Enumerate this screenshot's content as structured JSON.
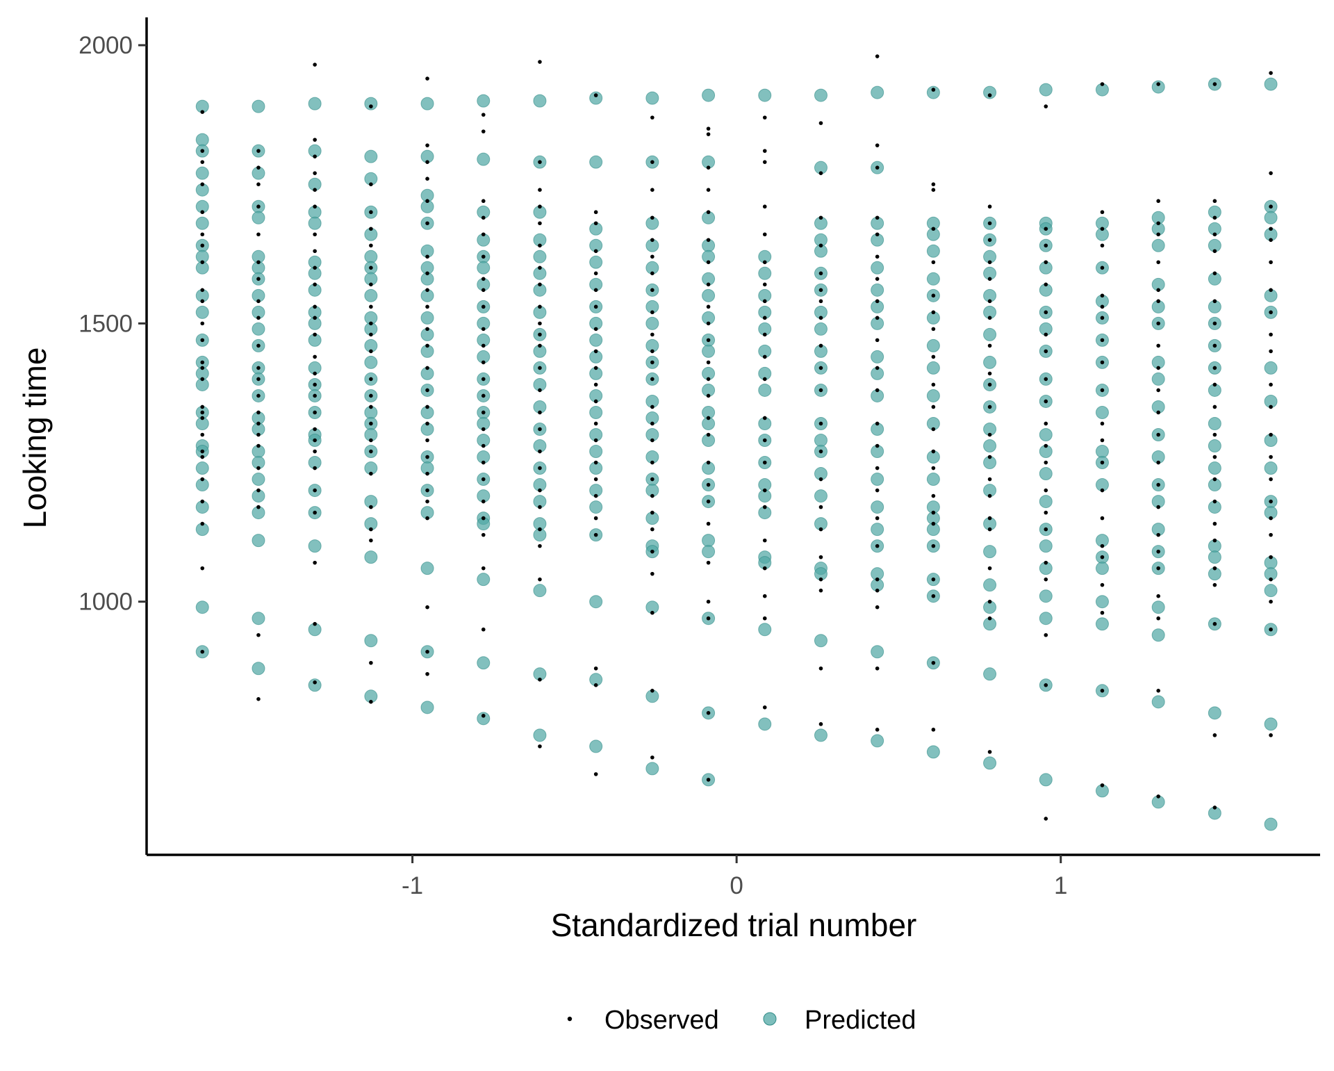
{
  "chart_data": {
    "type": "scatter",
    "title": "",
    "xlabel": "Standardized trial number",
    "ylabel": "Looking time",
    "xlim": [
      -1.82,
      1.8
    ],
    "ylim": [
      545,
      2050
    ],
    "x_ticks": [
      -1,
      0,
      1
    ],
    "x_tick_labels": [
      "-1",
      "0",
      "1"
    ],
    "y_ticks": [
      1000,
      1500,
      2000
    ],
    "y_tick_labels": [
      "1000",
      "1500",
      "2000"
    ],
    "grid": false,
    "legend": {
      "position": "bottom",
      "entries": [
        "Observed",
        "Predicted"
      ]
    },
    "colors": {
      "observed": "#000000",
      "predicted": "#52a8a5",
      "predicted_stroke": "#2f8a86"
    },
    "x_positions": [
      -1.648,
      -1.475,
      -1.301,
      -1.128,
      -0.954,
      -0.781,
      -0.607,
      -0.434,
      -0.26,
      -0.087,
      0.087,
      0.26,
      0.434,
      0.607,
      0.781,
      0.954,
      1.128,
      1.301,
      1.475,
      1.648
    ],
    "series": [
      {
        "name": "Observed",
        "groups": [
          [
            1880,
            1810,
            1790,
            1750,
            1700,
            1660,
            1640,
            1610,
            1560,
            1540,
            1500,
            1470,
            1430,
            1420,
            1400,
            1350,
            1340,
            1330,
            1300,
            1270,
            1260,
            1220,
            1180,
            1140,
            1060,
            910
          ],
          [
            1810,
            1780,
            1750,
            1710,
            1660,
            1610,
            1580,
            1540,
            1510,
            1460,
            1420,
            1400,
            1370,
            1340,
            1320,
            1300,
            1280,
            1240,
            1200,
            1170,
            940,
            825
          ],
          [
            1965,
            1830,
            1800,
            1770,
            1740,
            1710,
            1660,
            1630,
            1600,
            1570,
            1530,
            1510,
            1480,
            1440,
            1410,
            1390,
            1370,
            1340,
            1310,
            1290,
            1270,
            1240,
            1200,
            1160,
            1070,
            960,
            855
          ],
          [
            1890,
            1750,
            1700,
            1670,
            1640,
            1600,
            1570,
            1530,
            1500,
            1480,
            1450,
            1400,
            1370,
            1350,
            1320,
            1290,
            1270,
            1230,
            1170,
            1130,
            1110,
            890,
            820
          ],
          [
            1940,
            1820,
            1790,
            1760,
            1720,
            1680,
            1620,
            1590,
            1560,
            1530,
            1490,
            1460,
            1420,
            1380,
            1350,
            1320,
            1290,
            1260,
            1230,
            1200,
            1180,
            1150,
            990,
            910,
            870
          ],
          [
            1875,
            1845,
            1720,
            1690,
            1660,
            1620,
            1580,
            1560,
            1530,
            1490,
            1460,
            1430,
            1400,
            1370,
            1340,
            1310,
            1280,
            1250,
            1220,
            1180,
            1150,
            1120,
            1060,
            950,
            795
          ],
          [
            1970,
            1790,
            1740,
            1710,
            1680,
            1640,
            1600,
            1570,
            1530,
            1500,
            1480,
            1460,
            1420,
            1380,
            1340,
            1310,
            1270,
            1240,
            1200,
            1170,
            1130,
            1100,
            1040,
            860,
            740
          ],
          [
            1910,
            1700,
            1680,
            1630,
            1590,
            1560,
            1530,
            1490,
            1450,
            1420,
            1390,
            1360,
            1320,
            1290,
            1250,
            1220,
            1190,
            1150,
            1120,
            880,
            850,
            690
          ],
          [
            1870,
            1790,
            1740,
            1690,
            1650,
            1620,
            1590,
            1560,
            1520,
            1480,
            1450,
            1430,
            1400,
            1350,
            1320,
            1290,
            1250,
            1220,
            1190,
            1160,
            1130,
            1090,
            1050,
            980,
            840,
            720
          ],
          [
            1850,
            1840,
            1780,
            1740,
            1700,
            1650,
            1610,
            1570,
            1530,
            1500,
            1470,
            1430,
            1400,
            1370,
            1330,
            1300,
            1250,
            1210,
            1180,
            1140,
            1070,
            1000,
            970,
            800,
            680
          ],
          [
            1870,
            1810,
            1790,
            1710,
            1660,
            1610,
            1570,
            1540,
            1510,
            1480,
            1440,
            1400,
            1330,
            1290,
            1250,
            1200,
            1170,
            1110,
            1060,
            1010,
            970,
            810
          ],
          [
            1860,
            1770,
            1690,
            1640,
            1590,
            1560,
            1540,
            1510,
            1460,
            1420,
            1380,
            1320,
            1270,
            1220,
            1170,
            1130,
            1080,
            1040,
            1020,
            880,
            780
          ],
          [
            1980,
            1820,
            1780,
            1690,
            1660,
            1620,
            1580,
            1540,
            1510,
            1470,
            1420,
            1380,
            1320,
            1280,
            1240,
            1200,
            1150,
            1100,
            1040,
            1020,
            990,
            880,
            770
          ],
          [
            1920,
            1750,
            1740,
            1670,
            1610,
            1550,
            1520,
            1490,
            1440,
            1390,
            1350,
            1310,
            1270,
            1240,
            1190,
            1160,
            1140,
            1100,
            1040,
            1010,
            890,
            770
          ],
          [
            1910,
            1710,
            1680,
            1650,
            1610,
            1580,
            1540,
            1510,
            1460,
            1410,
            1390,
            1350,
            1300,
            1260,
            1220,
            1190,
            1150,
            1130,
            1060,
            1000,
            970,
            730
          ],
          [
            1890,
            1670,
            1640,
            1610,
            1570,
            1520,
            1480,
            1450,
            1400,
            1360,
            1320,
            1280,
            1250,
            1200,
            1160,
            1130,
            1070,
            1040,
            940,
            850,
            610
          ],
          [
            1930,
            1700,
            1670,
            1640,
            1600,
            1550,
            1530,
            1510,
            1470,
            1430,
            1380,
            1320,
            1290,
            1250,
            1200,
            1150,
            1100,
            1080,
            1030,
            980,
            840,
            670
          ],
          [
            1930,
            1720,
            1680,
            1660,
            1610,
            1560,
            1540,
            1500,
            1460,
            1420,
            1380,
            1340,
            1300,
            1250,
            1210,
            1170,
            1120,
            1090,
            1060,
            1010,
            970,
            840,
            650
          ],
          [
            1930,
            1720,
            1690,
            1660,
            1630,
            1590,
            1540,
            1500,
            1460,
            1420,
            1390,
            1350,
            1300,
            1260,
            1220,
            1180,
            1140,
            1110,
            1060,
            1030,
            960,
            760,
            630
          ],
          [
            1950,
            1770,
            1710,
            1670,
            1650,
            1610,
            1560,
            1520,
            1480,
            1450,
            1390,
            1350,
            1300,
            1260,
            1220,
            1180,
            1150,
            1120,
            1080,
            1040,
            1000,
            950,
            760
          ]
        ]
      },
      {
        "name": "Predicted",
        "groups": [
          [
            1890,
            1830,
            1810,
            1770,
            1740,
            1710,
            1680,
            1640,
            1620,
            1600,
            1550,
            1520,
            1470,
            1430,
            1410,
            1390,
            1340,
            1320,
            1280,
            1270,
            1240,
            1210,
            1170,
            1130,
            990,
            910
          ],
          [
            1890,
            1810,
            1770,
            1710,
            1690,
            1620,
            1600,
            1580,
            1550,
            1520,
            1490,
            1460,
            1420,
            1400,
            1370,
            1330,
            1310,
            1270,
            1250,
            1220,
            1190,
            1160,
            1110,
            970,
            880
          ],
          [
            1895,
            1810,
            1750,
            1700,
            1680,
            1610,
            1590,
            1560,
            1520,
            1500,
            1470,
            1420,
            1390,
            1370,
            1340,
            1300,
            1290,
            1250,
            1200,
            1160,
            1100,
            950,
            850
          ],
          [
            1895,
            1800,
            1760,
            1700,
            1660,
            1620,
            1600,
            1580,
            1550,
            1510,
            1490,
            1460,
            1430,
            1400,
            1370,
            1340,
            1320,
            1300,
            1270,
            1240,
            1180,
            1140,
            1080,
            930,
            830
          ],
          [
            1895,
            1800,
            1730,
            1710,
            1680,
            1630,
            1600,
            1580,
            1550,
            1510,
            1480,
            1450,
            1410,
            1380,
            1340,
            1310,
            1260,
            1240,
            1200,
            1160,
            1060,
            910,
            810
          ],
          [
            1900,
            1795,
            1700,
            1650,
            1620,
            1600,
            1570,
            1530,
            1500,
            1470,
            1440,
            1400,
            1370,
            1340,
            1320,
            1290,
            1260,
            1220,
            1190,
            1150,
            1140,
            1040,
            890,
            790
          ],
          [
            1900,
            1790,
            1700,
            1650,
            1620,
            1590,
            1560,
            1520,
            1480,
            1450,
            1420,
            1390,
            1350,
            1310,
            1280,
            1240,
            1210,
            1180,
            1140,
            1120,
            1020,
            870,
            760
          ],
          [
            1905,
            1790,
            1670,
            1640,
            1610,
            1570,
            1530,
            1500,
            1470,
            1440,
            1410,
            1370,
            1340,
            1300,
            1270,
            1240,
            1200,
            1170,
            1120,
            1000,
            860,
            740
          ],
          [
            1905,
            1790,
            1680,
            1640,
            1600,
            1560,
            1530,
            1500,
            1460,
            1430,
            1400,
            1360,
            1330,
            1300,
            1260,
            1220,
            1200,
            1150,
            1100,
            1090,
            990,
            830,
            700
          ],
          [
            1910,
            1790,
            1690,
            1640,
            1620,
            1580,
            1550,
            1510,
            1470,
            1450,
            1410,
            1380,
            1340,
            1320,
            1290,
            1240,
            1210,
            1180,
            1110,
            1090,
            970,
            800,
            680
          ],
          [
            1910,
            1620,
            1590,
            1550,
            1520,
            1490,
            1450,
            1410,
            1380,
            1320,
            1290,
            1250,
            1210,
            1190,
            1160,
            1080,
            1070,
            950,
            780
          ],
          [
            1910,
            1780,
            1680,
            1650,
            1630,
            1590,
            1560,
            1520,
            1490,
            1450,
            1420,
            1380,
            1320,
            1290,
            1270,
            1230,
            1190,
            1140,
            1060,
            1050,
            930,
            760
          ],
          [
            1915,
            1780,
            1680,
            1650,
            1600,
            1560,
            1530,
            1500,
            1440,
            1410,
            1370,
            1310,
            1270,
            1220,
            1170,
            1130,
            1100,
            1050,
            1030,
            910,
            750
          ],
          [
            1915,
            1680,
            1660,
            1630,
            1580,
            1550,
            1510,
            1460,
            1420,
            1370,
            1320,
            1260,
            1220,
            1170,
            1150,
            1130,
            1100,
            1040,
            1010,
            890,
            730
          ],
          [
            1915,
            1680,
            1650,
            1620,
            1590,
            1550,
            1520,
            1480,
            1430,
            1390,
            1350,
            1310,
            1280,
            1250,
            1200,
            1140,
            1090,
            1030,
            990,
            960,
            870,
            710
          ],
          [
            1920,
            1680,
            1670,
            1640,
            1600,
            1560,
            1520,
            1490,
            1450,
            1400,
            1360,
            1300,
            1270,
            1230,
            1180,
            1130,
            1100,
            1060,
            1010,
            970,
            850,
            680
          ],
          [
            1920,
            1680,
            1660,
            1600,
            1540,
            1510,
            1470,
            1430,
            1380,
            1340,
            1270,
            1250,
            1210,
            1110,
            1080,
            1060,
            1000,
            960,
            840,
            660
          ],
          [
            1925,
            1690,
            1670,
            1640,
            1570,
            1530,
            1500,
            1430,
            1400,
            1350,
            1300,
            1260,
            1210,
            1180,
            1130,
            1090,
            1060,
            990,
            940,
            820,
            640
          ],
          [
            1930,
            1700,
            1670,
            1640,
            1580,
            1530,
            1500,
            1460,
            1420,
            1380,
            1320,
            1280,
            1240,
            1210,
            1170,
            1100,
            1080,
            1050,
            960,
            800,
            620
          ],
          [
            1930,
            1710,
            1690,
            1660,
            1550,
            1520,
            1420,
            1360,
            1290,
            1240,
            1180,
            1160,
            1070,
            1050,
            1020,
            950,
            780,
            600
          ]
        ]
      }
    ]
  }
}
